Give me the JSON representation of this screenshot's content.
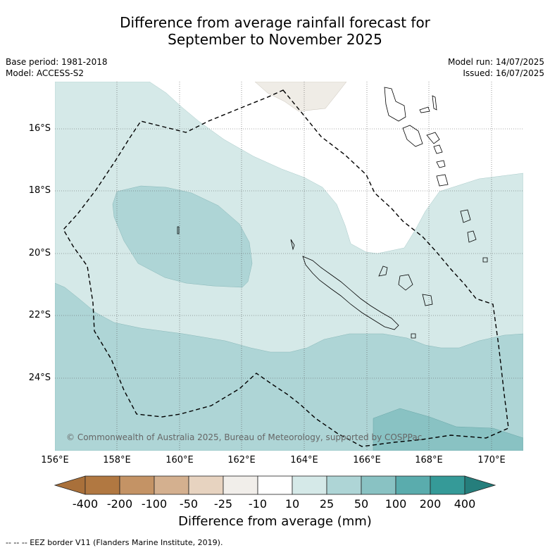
{
  "title_line1": "Difference from average rainfall forecast for",
  "title_line2": "September to November 2025",
  "base_period": "Base period: 1981-2018",
  "model": "Model: ACCESS-S2",
  "model_run": "Model run: 14/07/2025",
  "issued": "Issued: 16/07/2025",
  "copyright": "© Commonwealth of Australia 2025, Bureau of Meteorology, supported by COSPPac",
  "footnote": "--  --  -- EEZ border V11 (Flanders Marine Institute, 2019).",
  "lat_labels": [
    "16°S",
    "18°S",
    "20°S",
    "22°S",
    "24°S"
  ],
  "lon_labels": [
    "156°E",
    "158°E",
    "160°E",
    "162°E",
    "164°E",
    "166°E",
    "168°E",
    "170°E"
  ],
  "colorbar": {
    "title": "Difference from average (mm)",
    "labels": [
      "-400",
      "-200",
      "-100",
      "-50",
      "-25",
      "-10",
      "10",
      "25",
      "50",
      "100",
      "200",
      "400"
    ],
    "colors": [
      "#a9703a",
      "#b17841",
      "#c49365",
      "#d4b08f",
      "#e7d3c0",
      "#f1eeea",
      "#ffffff",
      "#d5e9e8",
      "#aed5d6",
      "#89c2c3",
      "#5aacad",
      "#359a98",
      "#257e7c"
    ]
  }
}
